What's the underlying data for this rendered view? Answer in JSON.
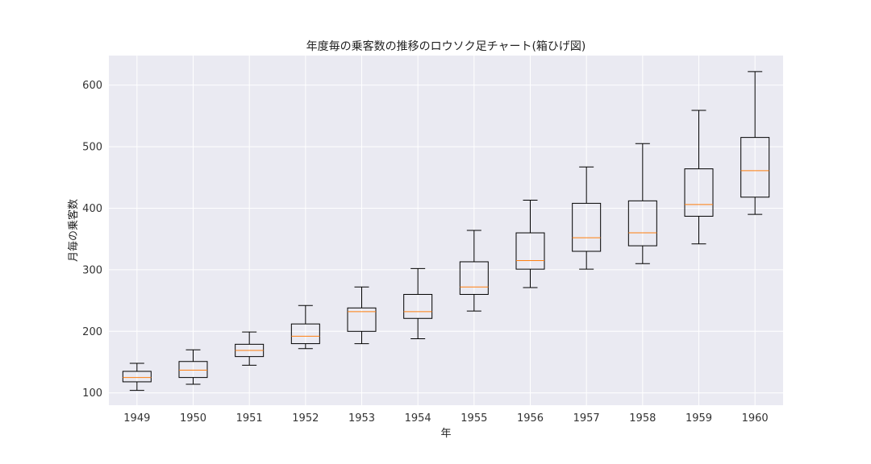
{
  "chart_data": {
    "type": "box",
    "title": "年度毎の乗客数の推移のロウソク足チャート(箱ひげ図)",
    "xlabel": "年",
    "ylabel": "月毎の乗客数",
    "ylim": [
      80,
      648
    ],
    "yticks": [
      100,
      200,
      300,
      400,
      500,
      600
    ],
    "grid": true,
    "colors": {
      "background": "#eaeaf2",
      "grid": "#ffffff",
      "box": "#000000",
      "median": "#ff7f0e"
    },
    "categories": [
      "1949",
      "1950",
      "1951",
      "1952",
      "1953",
      "1954",
      "1955",
      "1956",
      "1957",
      "1958",
      "1959",
      "1960"
    ],
    "boxes": [
      {
        "min": 104,
        "q1": 118,
        "median": 125,
        "q3": 135,
        "max": 148
      },
      {
        "min": 114,
        "q1": 125,
        "median": 137,
        "q3": 151,
        "max": 170
      },
      {
        "min": 145,
        "q1": 159,
        "median": 169,
        "q3": 179,
        "max": 199
      },
      {
        "min": 172,
        "q1": 180,
        "median": 192,
        "q3": 212,
        "max": 242
      },
      {
        "min": 180,
        "q1": 200,
        "median": 232,
        "q3": 238,
        "max": 272
      },
      {
        "min": 188,
        "q1": 221,
        "median": 232,
        "q3": 260,
        "max": 302
      },
      {
        "min": 233,
        "q1": 260,
        "median": 272,
        "q3": 313,
        "max": 364
      },
      {
        "min": 271,
        "q1": 301,
        "median": 315,
        "q3": 360,
        "max": 413
      },
      {
        "min": 301,
        "q1": 330,
        "median": 352,
        "q3": 408,
        "max": 467
      },
      {
        "min": 310,
        "q1": 339,
        "median": 360,
        "q3": 412,
        "max": 505
      },
      {
        "min": 342,
        "q1": 387,
        "median": 406,
        "q3": 464,
        "max": 559
      },
      {
        "min": 390,
        "q1": 418,
        "median": 461,
        "q3": 515,
        "max": 622
      }
    ]
  }
}
